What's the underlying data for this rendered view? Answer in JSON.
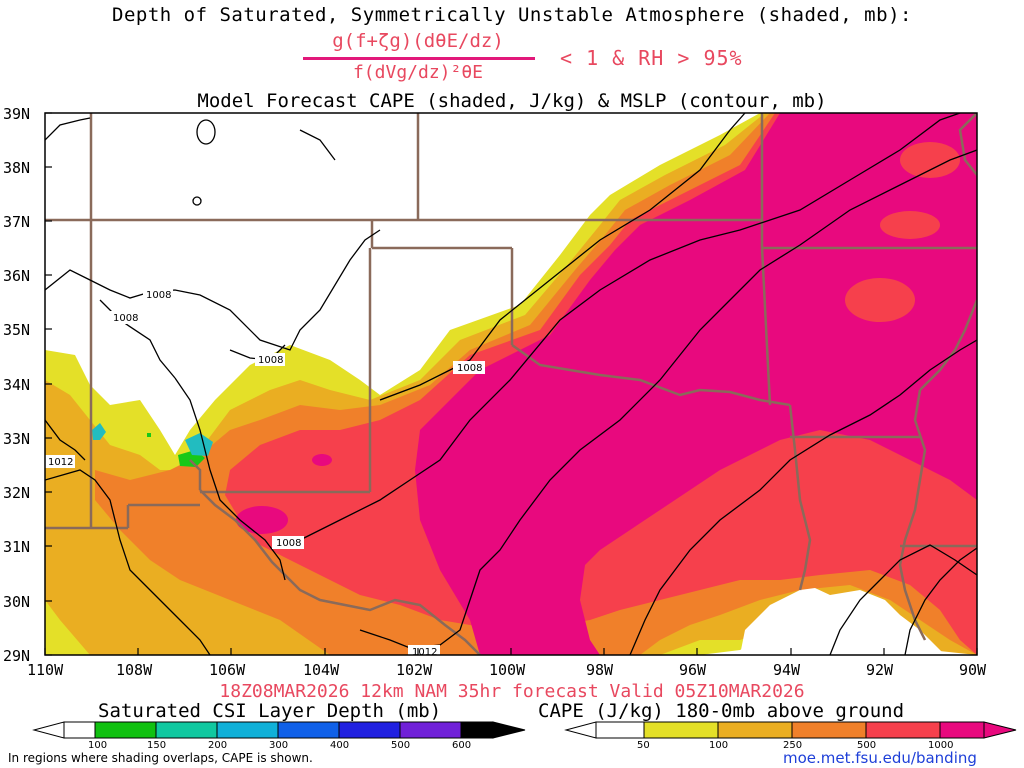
{
  "header": {
    "title_line1": "Depth of Saturated, Symmetrically Unstable Atmosphere (shaded, mb):",
    "formula_numerator": "g(f+ζg)(dθE/dz)",
    "formula_denominator": "f(dVg/dz)²θE",
    "formula_condition": "< 1 & RH > 95%",
    "title_line3": "Model Forecast CAPE (shaded, J/kg) & MSLP (contour, mb)"
  },
  "map": {
    "region": "Southern Plains / Gulf Coast",
    "lat_labels": [
      "39N",
      "38N",
      "37N",
      "36N",
      "35N",
      "34N",
      "33N",
      "32N",
      "31N",
      "30N",
      "29N"
    ],
    "lon_labels": [
      "110W",
      "108W",
      "106W",
      "104W",
      "102W",
      "100W",
      "98W",
      "96W",
      "94W",
      "92W",
      "90W"
    ],
    "mslp_contour_labels": [
      "1008",
      "1008",
      "1008",
      "1008",
      "1012",
      "1008",
      "1012"
    ],
    "colors": {
      "cape_50": "#e4e028",
      "cape_100": "#eaae22",
      "cape_250": "#f0802a",
      "cape_500": "#f6404c",
      "cape_1000": "#e8097e",
      "state_borders": "#8a6a5a",
      "contours": "#000000"
    }
  },
  "footer": {
    "valid_line": "18Z08MAR2026 12km NAM 35hr forecast Valid 05Z10MAR2026",
    "csi_colorbar_title": "Saturated CSI Layer Depth (mb)",
    "csi_colorbar_ticks": [
      "100",
      "150",
      "200",
      "300",
      "400",
      "500",
      "600"
    ],
    "cape_colorbar_title": "CAPE (J/kg) 180-0mb above ground",
    "cape_colorbar_ticks": [
      "50",
      "100",
      "250",
      "500",
      "1000"
    ],
    "note": "In regions where shading overlaps, CAPE is shown.",
    "url": "moe.met.fsu.edu/banding"
  }
}
